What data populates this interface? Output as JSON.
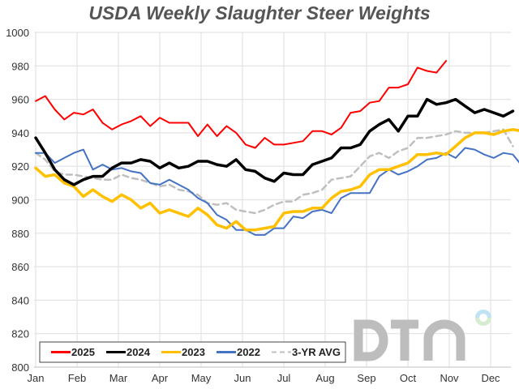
{
  "chart_data": {
    "type": "line",
    "title": "USDA Weekly Slaughter Steer Weights",
    "xlabel": "",
    "ylabel": "",
    "ylim": [
      800,
      1000
    ],
    "yticks": [
      800,
      820,
      840,
      860,
      880,
      900,
      920,
      940,
      960,
      980,
      1000
    ],
    "x_tick_labels": [
      "Jan",
      "Feb",
      "Mar",
      "Apr",
      "May",
      "Jun",
      "Jul",
      "Aug",
      "Sep",
      "Oct",
      "Nov",
      "Dec"
    ],
    "x_unit": "week of year",
    "grid": true,
    "legend_position": "bottom-left",
    "series": [
      {
        "name": "2025",
        "color": "#ff0000",
        "width": 2,
        "dash": false,
        "values": [
          959,
          962,
          954,
          948,
          952,
          951,
          954,
          946,
          942,
          945,
          947,
          950,
          944,
          949,
          946,
          946,
          946,
          938,
          945,
          938,
          944,
          940,
          933,
          931,
          937,
          933,
          933,
          934,
          935,
          941,
          941,
          939,
          943,
          952,
          953,
          958,
          959,
          967,
          967,
          969,
          979,
          977,
          976,
          983
        ]
      },
      {
        "name": "2024",
        "color": "#000000",
        "width": 3.5,
        "dash": false,
        "values": [
          937,
          928,
          918,
          912,
          909,
          912,
          914,
          914,
          919,
          922,
          922,
          924,
          923,
          919,
          922,
          919,
          920,
          923,
          923,
          921,
          920,
          924,
          918,
          917,
          913,
          911,
          916,
          915,
          915,
          921,
          923,
          925,
          931,
          931,
          933,
          941,
          945,
          948,
          941,
          950,
          950,
          960,
          957,
          958,
          960,
          956,
          952,
          954,
          952,
          950,
          953
        ]
      },
      {
        "name": "2023",
        "color": "#ffc000",
        "width": 3.5,
        "dash": false,
        "values": [
          919,
          914,
          915,
          910,
          908,
          902,
          906,
          902,
          899,
          903,
          900,
          895,
          898,
          892,
          894,
          892,
          890,
          895,
          891,
          885,
          883,
          887,
          882,
          882,
          883,
          884,
          892,
          893,
          893,
          895,
          895,
          901,
          905,
          906,
          908,
          915,
          918,
          918,
          920,
          922,
          927,
          927,
          928,
          927,
          932,
          937,
          940,
          940,
          939,
          941,
          942,
          941
        ]
      },
      {
        "name": "2022",
        "color": "#4472c4",
        "width": 2,
        "dash": false,
        "values": [
          928,
          928,
          922,
          925,
          928,
          930,
          918,
          921,
          918,
          919,
          917,
          916,
          910,
          909,
          912,
          909,
          906,
          901,
          898,
          891,
          888,
          882,
          882,
          879,
          879,
          883,
          883,
          890,
          889,
          893,
          894,
          892,
          901,
          904,
          904,
          904,
          914,
          918,
          915,
          917,
          920,
          924,
          925,
          928,
          925,
          931,
          930,
          927,
          925,
          928,
          927,
          920
        ]
      },
      {
        "name": "3-YR AVG",
        "color": "#bfbfbf",
        "width": 2.5,
        "dash": true,
        "values": [
          928,
          924,
          917,
          915,
          915,
          914,
          913,
          912,
          912,
          915,
          913,
          912,
          910,
          908,
          909,
          906,
          905,
          903,
          898,
          897,
          898,
          894,
          893,
          892,
          894,
          897,
          899,
          899,
          903,
          904,
          906,
          912,
          913,
          914,
          920,
          926,
          928,
          925,
          929,
          931,
          937,
          937,
          938,
          939,
          941,
          940,
          940,
          940,
          941,
          942,
          932
        ]
      }
    ]
  },
  "logo": {
    "text": "DTN",
    "dot_colors": [
      "#bde3f5",
      "#d5ecd0"
    ]
  }
}
